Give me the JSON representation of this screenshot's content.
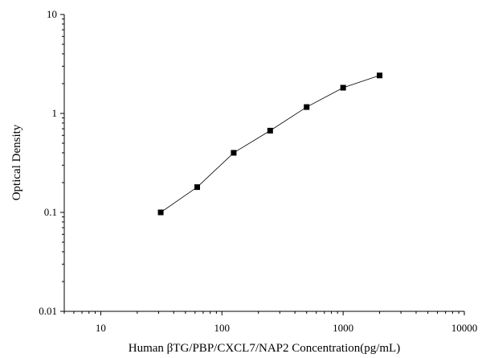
{
  "chart_data": {
    "type": "scatter",
    "title": "",
    "xlabel": "Human βTG/PBP/CXCL7/NAP2 Concentration(pg/mL)",
    "ylabel": "Optical Density",
    "x_scale": "log",
    "y_scale": "log",
    "xlim": [
      5,
      10000
    ],
    "ylim": [
      0.01,
      10
    ],
    "x_ticks": [
      10,
      100,
      1000,
      10000
    ],
    "x_tick_labels": [
      "10",
      "100",
      "1000",
      "10000"
    ],
    "y_ticks": [
      0.01,
      0.1,
      1,
      10
    ],
    "y_tick_labels": [
      "0.01",
      "0.1",
      "1",
      "10"
    ],
    "grid": false,
    "legend": "none",
    "series": [
      {
        "x": [
          31.25,
          62.5,
          125,
          250,
          500,
          1000,
          2000
        ],
        "y": [
          0.1,
          0.18,
          0.4,
          0.67,
          1.16,
          1.82,
          2.42
        ],
        "marker": "square",
        "color": "#000000",
        "fit_line": true
      }
    ]
  }
}
